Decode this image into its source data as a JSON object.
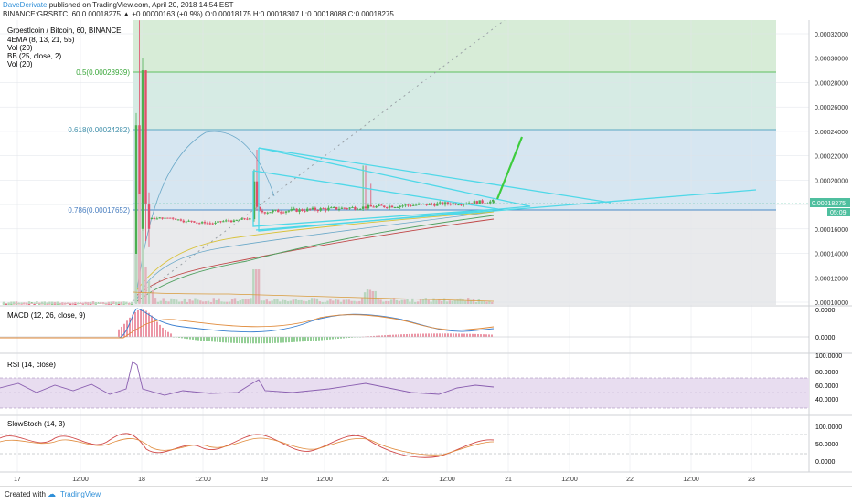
{
  "header": {
    "author": "DaveDerivate",
    "published_text": "published on TradingView.com, April 20, 2018 14:54 EST",
    "symbol_line": "BINANCE:GRSBTC, 60",
    "change": "0.00018275 ▲ +0.00000163 (+0.9%)",
    "ohlc": [
      {
        "k": "O:",
        "v": "0.00018175"
      },
      {
        "k": "H:",
        "v": "0.00018307"
      },
      {
        "k": "L:",
        "v": "0.00018088"
      },
      {
        "k": "C:",
        "v": "0.00018275"
      }
    ]
  },
  "legend": {
    "title": "Groestlcoin / Bitcoin, 60, BINANCE",
    "lines": [
      "4EMA (8, 13, 21, 55)",
      "Vol (20)",
      "BB (25, close, 2)",
      "Vol (20)"
    ]
  },
  "fib_labels": [
    {
      "label": "0.5(0.00028939)",
      "price": 0.00028939,
      "color": "#3aa63a"
    },
    {
      "label": "0.618(0.00024282)",
      "price": 0.00024282,
      "color": "#3f8faa"
    },
    {
      "label": "0.786(0.00017652)",
      "price": 0.00017652,
      "color": "#4a7fc0"
    }
  ],
  "price_badges": [
    {
      "label": "0.00018275",
      "color": "#4fbf9f"
    },
    {
      "label": "05:09",
      "color": "#4fbf9f"
    }
  ],
  "panels": {
    "macd": {
      "title": "MACD (12, 26, close, 9)",
      "ticks": [
        "0.0000",
        "0.0000"
      ]
    },
    "rsi": {
      "title": "RSI (14, close)",
      "ticks": [
        "100.0000",
        "80.0000",
        "60.0000",
        "40.0000"
      ]
    },
    "stoch": {
      "title": "SlowStoch (14, 3)",
      "ticks": [
        "100.0000",
        "50.0000",
        "0.0000"
      ]
    }
  },
  "xaxis": {
    "labels": [
      "17",
      "12:00",
      "18",
      "12:00",
      "19",
      "12:00",
      "20",
      "12:00",
      "21",
      "12:00",
      "22",
      "12:00",
      "23"
    ]
  },
  "footer": {
    "created_with": "Created with",
    "brand": "TradingView"
  },
  "chart_data": {
    "type": "candlestick",
    "title": "Groestlcoin / Bitcoin, 60, BINANCE",
    "y_ticks": [
      0.00032,
      0.0003,
      0.00028,
      0.00026,
      0.00024,
      0.00022,
      0.0002,
      0.00018,
      0.00016,
      0.00014,
      0.00012,
      0.0001
    ],
    "y_tick_labels": [
      "0.00032000",
      "0.00030000",
      "0.00028000",
      "0.00026000",
      "0.00024000",
      "0.00022000",
      "0.00020000",
      "0.00018000",
      "0.00016000",
      "0.00014000",
      "0.00012000",
      "0.00010000"
    ],
    "ylim": [
      9.65e-05,
      0.000331
    ],
    "last_price": 0.00018275,
    "approx_price_path": [
      {
        "t": "17 00:00",
        "p": 9.85e-05
      },
      {
        "t": "18 00:00",
        "p": 9.95e-05
      },
      {
        "t": "18 01:00",
        "p": 0.00029
      },
      {
        "t": "18 04:00",
        "p": 0.00018
      },
      {
        "t": "18 12:00",
        "p": 0.00017
      },
      {
        "t": "19 00:00",
        "p": 0.0002
      },
      {
        "t": "19 12:00",
        "p": 0.000175
      },
      {
        "t": "20 00:00",
        "p": 0.000178
      },
      {
        "t": "20 14:54",
        "p": 0.00018275
      }
    ],
    "annotations": [
      "symmetrical triangle",
      "projected breakout arrow"
    ]
  }
}
